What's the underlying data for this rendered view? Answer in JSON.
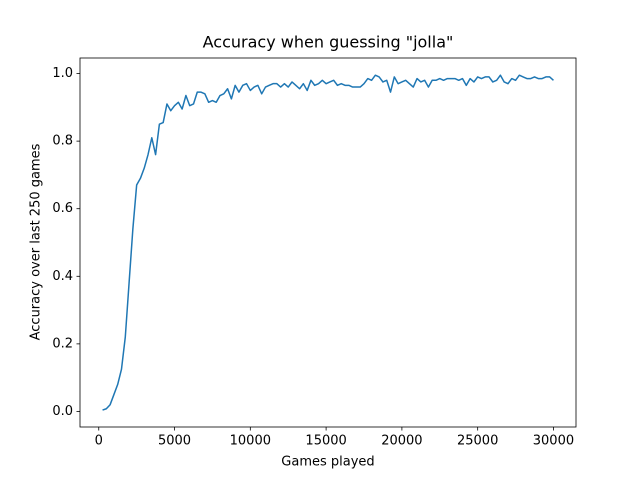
{
  "chart_data": {
    "type": "line",
    "title": "Accuracy when guessing \"jolla\"",
    "x_label": "Games played",
    "y_label": "Accuracy over last 250 games",
    "x": [
      250,
      500,
      750,
      1000,
      1250,
      1500,
      1750,
      2000,
      2250,
      2500,
      2750,
      3000,
      3250,
      3500,
      3750,
      4000,
      4250,
      4500,
      4750,
      5000,
      5250,
      5500,
      5750,
      6000,
      6250,
      6500,
      6750,
      7000,
      7250,
      7500,
      7750,
      8000,
      8250,
      8500,
      8750,
      9000,
      9250,
      9500,
      9750,
      10000,
      10250,
      10500,
      10750,
      11000,
      11250,
      11500,
      11750,
      12000,
      12250,
      12500,
      12750,
      13000,
      13250,
      13500,
      13750,
      14000,
      14250,
      14500,
      14750,
      15000,
      15250,
      15500,
      15750,
      16000,
      16250,
      16500,
      16750,
      17000,
      17250,
      17500,
      17750,
      18000,
      18250,
      18500,
      18750,
      19000,
      19250,
      19500,
      19750,
      20000,
      20250,
      20500,
      20750,
      21000,
      21250,
      21500,
      21750,
      22000,
      22250,
      22500,
      22750,
      23000,
      23250,
      23500,
      23750,
      24000,
      24250,
      24500,
      24750,
      25000,
      25250,
      25500,
      25750,
      26000,
      26250,
      26500,
      26750,
      27000,
      27250,
      27500,
      27750,
      28000,
      28250,
      28500,
      28750,
      29000,
      29250,
      29500,
      29750,
      30000
    ],
    "series": [
      {
        "color": "#1f77b4",
        "values": [
          0.004,
          0.008,
          0.02,
          0.05,
          0.08,
          0.125,
          0.22,
          0.38,
          0.54,
          0.67,
          0.69,
          0.72,
          0.76,
          0.81,
          0.76,
          0.85,
          0.855,
          0.91,
          0.89,
          0.905,
          0.915,
          0.895,
          0.935,
          0.905,
          0.91,
          0.945,
          0.945,
          0.94,
          0.915,
          0.92,
          0.915,
          0.935,
          0.94,
          0.955,
          0.925,
          0.965,
          0.945,
          0.965,
          0.97,
          0.95,
          0.96,
          0.965,
          0.94,
          0.96,
          0.965,
          0.97,
          0.97,
          0.96,
          0.97,
          0.96,
          0.975,
          0.965,
          0.955,
          0.97,
          0.95,
          0.98,
          0.965,
          0.97,
          0.98,
          0.97,
          0.975,
          0.98,
          0.965,
          0.97,
          0.965,
          0.965,
          0.96,
          0.96,
          0.96,
          0.97,
          0.985,
          0.98,
          0.995,
          0.99,
          0.975,
          0.98,
          0.945,
          0.99,
          0.97,
          0.975,
          0.98,
          0.97,
          0.96,
          0.985,
          0.975,
          0.98,
          0.96,
          0.98,
          0.98,
          0.985,
          0.98,
          0.985,
          0.985,
          0.985,
          0.98,
          0.985,
          0.965,
          0.985,
          0.975,
          0.99,
          0.985,
          0.99,
          0.99,
          0.975,
          0.98,
          0.995,
          0.975,
          0.97,
          0.985,
          0.98,
          0.995,
          0.99,
          0.985,
          0.985,
          0.99,
          0.985,
          0.985,
          0.99,
          0.99,
          0.98
        ]
      }
    ],
    "xlim": [
      -1237.5,
      31487.5
    ],
    "xticks": [
      0,
      5000,
      10000,
      15000,
      20000,
      25000,
      30000
    ],
    "ylim": [
      -0.046,
      1.046
    ],
    "yticks": [
      {
        "value": 0,
        "label": "0.0"
      },
      0.2,
      0.4,
      0.6,
      0.8,
      {
        "value": 1,
        "label": "1.0"
      }
    ],
    "grid": false
  }
}
